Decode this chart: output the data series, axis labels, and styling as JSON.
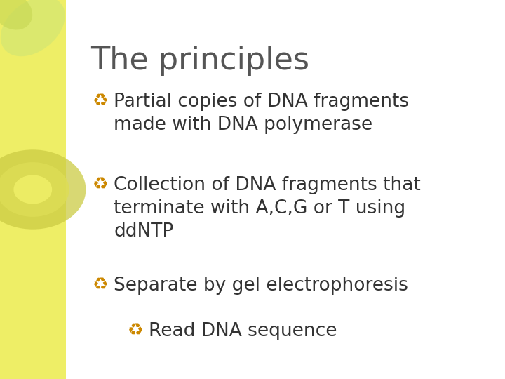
{
  "title": "The principles",
  "title_color": "#555555",
  "title_fontsize": 32,
  "bullet_color": "#CC8800",
  "text_color": "#333333",
  "background_white": "#FFFFFF",
  "sidebar_color": "#EEEE66",
  "bullet_fontsize": 19,
  "bullet_sym": "♻",
  "figsize": [
    7.2,
    5.4
  ],
  "dpi": 100,
  "bullets": [
    {
      "text": "Partial copies of DNA fragments\nmade with DNA polymerase",
      "bx": 0.225,
      "by": 0.755,
      "indent": 0
    },
    {
      "text": "Collection of DNA fragments that\nterminate with A,C,G or T using\nddNTP",
      "bx": 0.225,
      "by": 0.535,
      "indent": 0
    },
    {
      "text": "Separate by gel electrophoresis",
      "bx": 0.225,
      "by": 0.27,
      "indent": 0
    },
    {
      "text": "Read DNA sequence",
      "bx": 0.295,
      "by": 0.15,
      "indent": 1
    }
  ]
}
